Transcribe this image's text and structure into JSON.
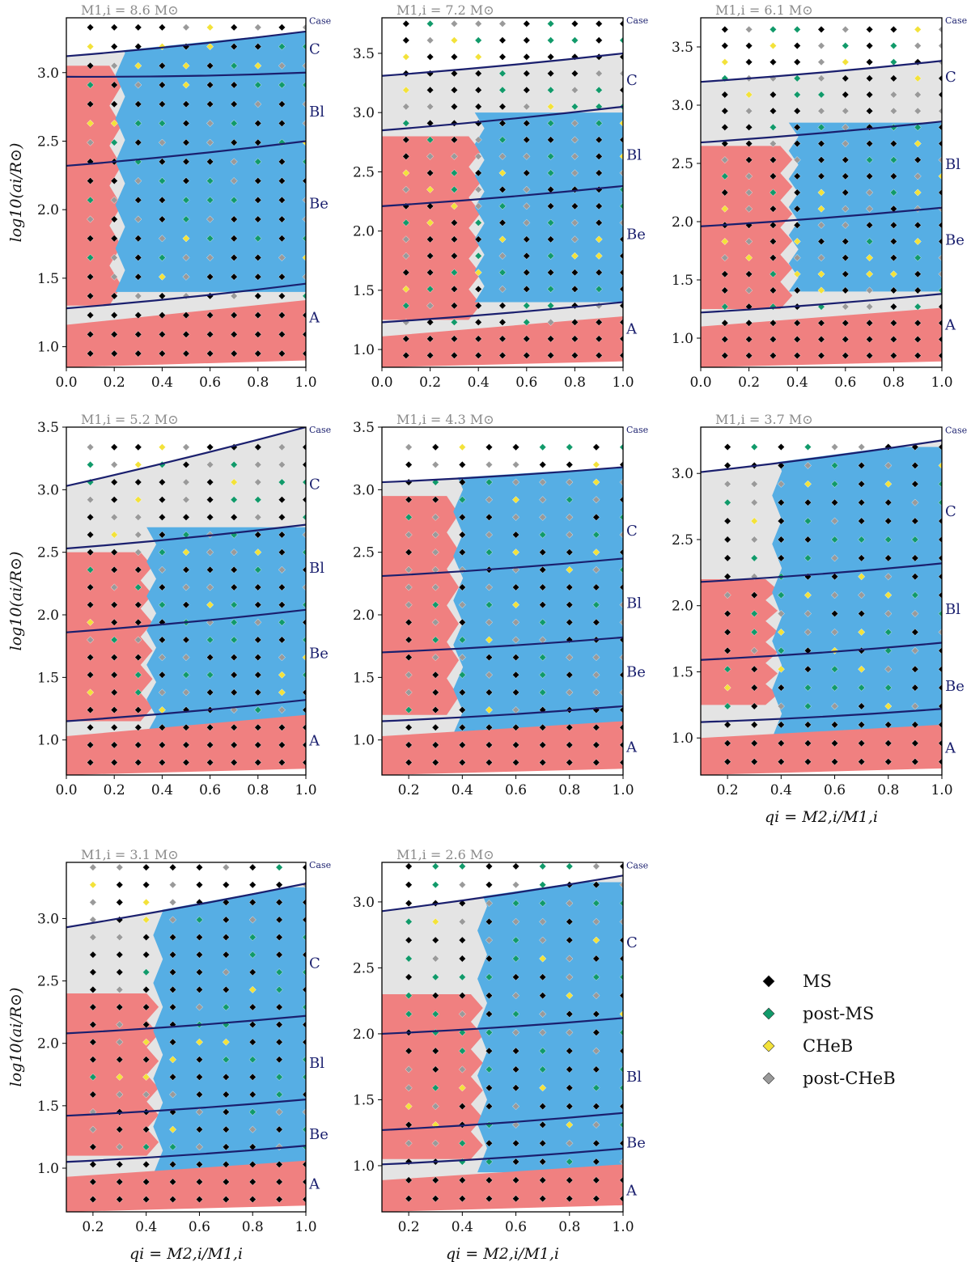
{
  "figure": {
    "y_axis_label": "log10(ai/R⊙)",
    "x_axis_label": "qi = M2,i/M1,i",
    "colors": {
      "background_grey": "#e4e4e4",
      "red_region": "#f08080",
      "blue_region": "#56aee4",
      "case_line": "#1a1f6e",
      "title_grey": "#8a8a8a"
    }
  },
  "legend": {
    "items": [
      {
        "label": "MS",
        "color": "#000000"
      },
      {
        "label": "post-MS",
        "color": "#119a6a"
      },
      {
        "label": "CHeB",
        "color": "#f3e23a"
      },
      {
        "label": "post-CHeB",
        "color": "#9a9a9a"
      }
    ]
  },
  "chart_data": [
    {
      "type": "scatter",
      "title": "M1,i = 8.6 M⊙",
      "xlabel": "",
      "ylabel": "log10(ai/R⊙)",
      "xlim": [
        0.0,
        1.0
      ],
      "ylim": [
        0.85,
        3.4
      ],
      "xticks": [
        "0.0",
        "0.2",
        "0.4",
        "0.6",
        "0.8",
        "1.0"
      ],
      "yticks": [
        "1.0",
        "1.5",
        "2.0",
        "2.5",
        "3.0"
      ],
      "case_labels": [
        {
          "label": "Case",
          "y": 3.38
        },
        {
          "label": "C",
          "y": 3.18
        },
        {
          "label": "Bl",
          "y": 2.72
        },
        {
          "label": "Be",
          "y": 2.05
        },
        {
          "label": "A",
          "y": 1.22
        }
      ],
      "boundaries": [
        [
          1.28,
          1.46
        ],
        [
          2.32,
          2.5
        ],
        [
          2.97,
          3.0
        ],
        [
          3.12,
          3.3
        ]
      ],
      "red_region": {
        "q_max": 0.2,
        "y_min": 1.3,
        "y_max": 3.05
      },
      "blue_region": {
        "q_min": 0.22,
        "y_min": 1.4,
        "y_max": 3.3
      }
    },
    {
      "type": "scatter",
      "title": "M1,i = 7.2 M⊙",
      "xlabel": "",
      "ylabel": "",
      "xlim": [
        0.0,
        1.0
      ],
      "ylim": [
        0.85,
        3.8
      ],
      "xticks": [
        "0.0",
        "0.2",
        "0.4",
        "0.6",
        "0.8",
        "1.0"
      ],
      "yticks": [
        "1.0",
        "1.5",
        "2.0",
        "2.5",
        "3.0",
        "3.5"
      ],
      "case_labels": [
        {
          "label": "Case",
          "y": 3.78
        },
        {
          "label": "C",
          "y": 3.28
        },
        {
          "label": "Bl",
          "y": 2.65
        },
        {
          "label": "Be",
          "y": 1.98
        },
        {
          "label": "A",
          "y": 1.18
        }
      ],
      "boundaries": [
        [
          1.23,
          1.4
        ],
        [
          2.21,
          2.38
        ],
        [
          2.85,
          3.05
        ],
        [
          3.31,
          3.5
        ]
      ],
      "red_region": {
        "q_max": 0.38,
        "y_min": 1.25,
        "y_max": 2.8
      },
      "blue_region": {
        "q_min": 0.4,
        "y_min": 1.4,
        "y_max": 3.0
      }
    },
    {
      "type": "scatter",
      "title": "M1,i = 6.1 M⊙",
      "xlabel": "",
      "ylabel": "",
      "xlim": [
        0.0,
        1.0
      ],
      "ylim": [
        0.75,
        3.75
      ],
      "xticks": [
        "0.0",
        "0.2",
        "0.4",
        "0.6",
        "0.8",
        "1.0"
      ],
      "yticks": [
        "1.0",
        "1.5",
        "2.0",
        "2.5",
        "3.0",
        "3.5"
      ],
      "case_labels": [
        {
          "label": "Case",
          "y": 3.73
        },
        {
          "label": "C",
          "y": 3.25
        },
        {
          "label": "Bl",
          "y": 2.5
        },
        {
          "label": "Be",
          "y": 1.85
        },
        {
          "label": "A",
          "y": 1.12
        }
      ],
      "boundaries": [
        [
          1.22,
          1.38
        ],
        [
          1.96,
          2.12
        ],
        [
          2.68,
          2.86
        ],
        [
          3.2,
          3.38
        ]
      ],
      "red_region": {
        "q_max": 0.35,
        "y_min": 1.25,
        "y_max": 2.65
      },
      "blue_region": {
        "q_min": 0.38,
        "y_min": 1.4,
        "y_max": 2.85
      }
    },
    {
      "type": "scatter",
      "title": "M1,i = 5.2 M⊙",
      "xlabel": "",
      "ylabel": "log10(ai/R⊙)",
      "xlim": [
        0.0,
        1.0
      ],
      "ylim": [
        0.72,
        3.5
      ],
      "xticks": [
        "0.0",
        "0.2",
        "0.4",
        "0.6",
        "0.8",
        "1.0"
      ],
      "yticks": [
        "1.0",
        "1.5",
        "2.0",
        "2.5",
        "3.0",
        "3.5"
      ],
      "case_labels": [
        {
          "label": "Case",
          "y": 3.48
        },
        {
          "label": "C",
          "y": 3.05
        },
        {
          "label": "Bl",
          "y": 2.38
        },
        {
          "label": "Be",
          "y": 1.7
        },
        {
          "label": "A",
          "y": 1.0
        }
      ],
      "boundaries": [
        [
          1.15,
          1.32
        ],
        [
          1.86,
          2.04
        ],
        [
          2.53,
          2.72
        ],
        [
          3.03,
          3.5
        ]
      ],
      "red_region": {
        "q_max": 0.33,
        "y_min": 1.15,
        "y_max": 2.5
      },
      "blue_region": {
        "q_min": 0.35,
        "y_min": 1.05,
        "y_max": 2.7
      }
    },
    {
      "type": "scatter",
      "title": "M1,i = 4.3 M⊙",
      "xlabel": "",
      "ylabel": "",
      "xlim": [
        0.1,
        1.0
      ],
      "ylim": [
        0.72,
        3.5
      ],
      "xticks": [
        "0.2",
        "0.4",
        "0.6",
        "0.8",
        "1.0"
      ],
      "yticks": [
        "1.0",
        "1.5",
        "2.0",
        "2.5",
        "3.0",
        "3.5"
      ],
      "case_labels": [
        {
          "label": "Case",
          "y": 3.48
        },
        {
          "label": "C",
          "y": 2.68
        },
        {
          "label": "Bl",
          "y": 2.1
        },
        {
          "label": "Be",
          "y": 1.55
        },
        {
          "label": "A",
          "y": 0.95
        }
      ],
      "boundaries": [
        [
          1.15,
          1.27
        ],
        [
          1.7,
          1.82
        ],
        [
          2.31,
          2.45
        ],
        [
          3.06,
          3.18
        ]
      ],
      "red_region": {
        "q_max": 0.36,
        "y_min": 1.2,
        "y_max": 2.95
      },
      "blue_region": {
        "q_min": 0.38,
        "y_min": 1.05,
        "y_max": 3.18
      }
    },
    {
      "type": "scatter",
      "title": "M1,i = 3.7 M⊙",
      "xlabel": "qi = M2,i/M1,i",
      "ylabel": "",
      "xlim": [
        0.1,
        1.0
      ],
      "ylim": [
        0.72,
        3.35
      ],
      "xticks": [
        "0.2",
        "0.4",
        "0.6",
        "0.8",
        "1.0"
      ],
      "yticks": [
        "1.0",
        "1.5",
        "2.0",
        "2.5",
        "3.0"
      ],
      "case_labels": [
        {
          "label": "Case",
          "y": 3.33
        },
        {
          "label": "C",
          "y": 2.72
        },
        {
          "label": "Bl",
          "y": 1.98
        },
        {
          "label": "Be",
          "y": 1.4
        },
        {
          "label": "A",
          "y": 0.93
        }
      ],
      "boundaries": [
        [
          1.12,
          1.22
        ],
        [
          1.59,
          1.72
        ],
        [
          2.18,
          2.32
        ],
        [
          3.01,
          3.25
        ]
      ],
      "red_region": {
        "q_max": 0.36,
        "y_min": 1.25,
        "y_max": 2.2
      },
      "blue_region": {
        "q_min": 0.38,
        "y_min": 1.0,
        "y_max": 3.2
      }
    },
    {
      "type": "scatter",
      "title": "M1,i = 3.1 M⊙",
      "xlabel": "qi = M2,i/M1,i",
      "ylabel": "log10(ai/R⊙)",
      "xlim": [
        0.1,
        1.0
      ],
      "ylim": [
        0.65,
        3.45
      ],
      "xticks": [
        "0.2",
        "0.4",
        "0.6",
        "0.8",
        "1.0"
      ],
      "yticks": [
        "1.0",
        "1.5",
        "2.0",
        "2.5",
        "3.0"
      ],
      "case_labels": [
        {
          "label": "Case",
          "y": 3.43
        },
        {
          "label": "C",
          "y": 2.65
        },
        {
          "label": "Bl",
          "y": 1.85
        },
        {
          "label": "Be",
          "y": 1.28
        },
        {
          "label": "A",
          "y": 0.88
        }
      ],
      "boundaries": [
        [
          1.05,
          1.18
        ],
        [
          1.42,
          1.55
        ],
        [
          2.08,
          2.22
        ],
        [
          2.93,
          3.28
        ]
      ],
      "red_region": {
        "q_max": 0.42,
        "y_min": 1.1,
        "y_max": 2.4
      },
      "blue_region": {
        "q_min": 0.44,
        "y_min": 0.95,
        "y_max": 3.25
      }
    },
    {
      "type": "scatter",
      "title": "M1,i = 2.6 M⊙",
      "xlabel": "qi = M2,i/M1,i",
      "ylabel": "",
      "xlim": [
        0.1,
        1.0
      ],
      "ylim": [
        0.65,
        3.3
      ],
      "xticks": [
        "0.2",
        "0.4",
        "0.6",
        "0.8",
        "1.0"
      ],
      "yticks": [
        "1.0",
        "1.5",
        "2.0",
        "2.5",
        "3.0"
      ],
      "case_labels": [
        {
          "label": "Case",
          "y": 3.28
        },
        {
          "label": "C",
          "y": 2.7
        },
        {
          "label": "Bl",
          "y": 1.68
        },
        {
          "label": "Be",
          "y": 1.18
        },
        {
          "label": "A",
          "y": 0.82
        }
      ],
      "boundaries": [
        [
          1.01,
          1.13
        ],
        [
          1.27,
          1.4
        ],
        [
          2.0,
          2.12
        ],
        [
          2.93,
          3.2
        ]
      ],
      "red_region": {
        "q_max": 0.45,
        "y_min": 1.05,
        "y_max": 2.3
      },
      "blue_region": {
        "q_min": 0.47,
        "y_min": 0.95,
        "y_max": 3.15
      }
    }
  ]
}
